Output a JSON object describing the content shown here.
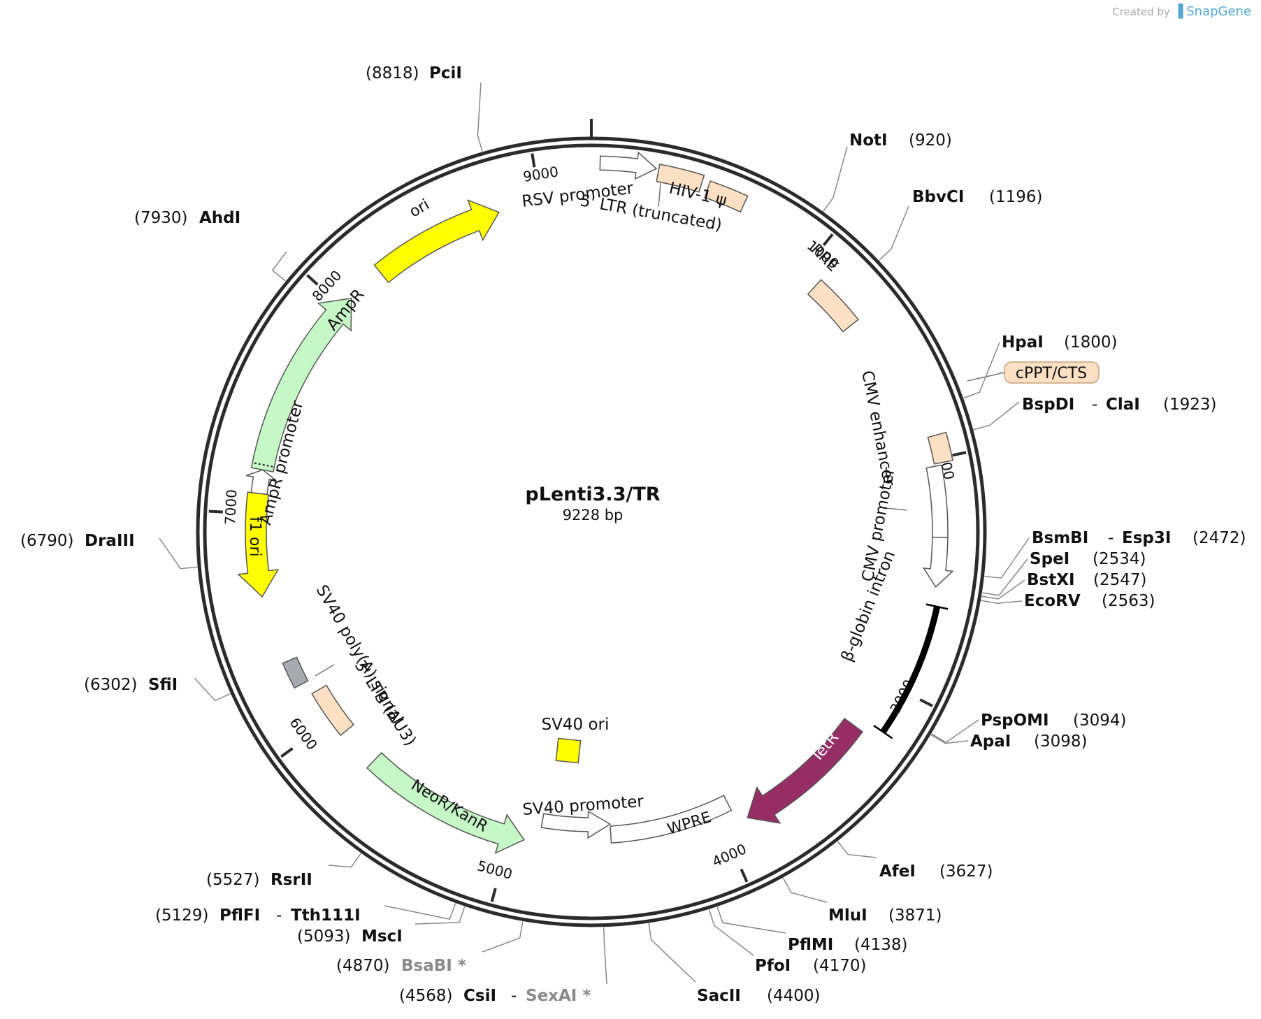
{
  "credit": {
    "prefix": "Created by",
    "brand": "SnapGene"
  },
  "plasmid": {
    "name": "pLenti3.3/TR",
    "size_label": "9228 bp",
    "length_bp": 9228
  },
  "ticks": [
    {
      "bp": 1000,
      "label": "1000"
    },
    {
      "bp": 2000,
      "label": "2000"
    },
    {
      "bp": 3000,
      "label": "3000"
    },
    {
      "bp": 4000,
      "label": "4000"
    },
    {
      "bp": 5000,
      "label": "5000"
    },
    {
      "bp": 6000,
      "label": "6000"
    },
    {
      "bp": 7000,
      "label": "7000"
    },
    {
      "bp": 8000,
      "label": "8000"
    },
    {
      "bp": 9000,
      "label": "9000"
    }
  ],
  "sites": [
    {
      "id": "pcii",
      "name": "PciI",
      "pos": "(8818)",
      "bp": 8818
    },
    {
      "id": "noti",
      "name": "NotI",
      "pos": "(920)",
      "bp": 920
    },
    {
      "id": "bbvci",
      "name": "BbvCI",
      "pos": "(1196)",
      "bp": 1196
    },
    {
      "id": "hpai",
      "name": "HpaI",
      "pos": "(1800)",
      "bp": 1800
    },
    {
      "id": "bspdi",
      "name": "BspDI",
      "name2": "ClaI",
      "pos": "(1923)",
      "bp": 1923
    },
    {
      "id": "bsmbi",
      "name": "BsmBI",
      "name2": "Esp3I",
      "pos": "(2472)",
      "bp": 2472
    },
    {
      "id": "spei",
      "name": "SpeI",
      "pos": "(2534)",
      "bp": 2534
    },
    {
      "id": "bstxi",
      "name": "BstXI",
      "pos": "(2547)",
      "bp": 2547
    },
    {
      "id": "ecorv",
      "name": "EcoRV",
      "pos": "(2563)",
      "bp": 2563
    },
    {
      "id": "pspomi",
      "name": "PspOMI",
      "pos": "(3094)",
      "bp": 3094
    },
    {
      "id": "apai",
      "name": "ApaI",
      "pos": "(3098)",
      "bp": 3098
    },
    {
      "id": "afei",
      "name": "AfeI",
      "pos": "(3627)",
      "bp": 3627
    },
    {
      "id": "mlui",
      "name": "MluI",
      "pos": "(3871)",
      "bp": 3871
    },
    {
      "id": "pflmi",
      "name": "PflMI",
      "pos": "(4138)",
      "bp": 4138
    },
    {
      "id": "pfoi",
      "name": "PfoI",
      "pos": "(4170)",
      "bp": 4170
    },
    {
      "id": "sacii",
      "name": "SacII",
      "pos": "(4400)",
      "bp": 4400
    },
    {
      "id": "csii",
      "name": "CsiI",
      "name2": "SexAI *",
      "pos": "(4568)",
      "bp": 4568
    },
    {
      "id": "bsabi",
      "name": "BsaBI *",
      "pos": "(4870)",
      "bp": 4870
    },
    {
      "id": "msci",
      "name": "MscI",
      "pos": "(5093)",
      "bp": 5093
    },
    {
      "id": "pflfi",
      "name": "PflFI",
      "name2": "Tth111I",
      "pos": "(5129)",
      "bp": 5129
    },
    {
      "id": "rsrii",
      "name": "RsrII",
      "pos": "(5527)",
      "bp": 5527
    },
    {
      "id": "sfii",
      "name": "SfiI",
      "pos": "(6302)",
      "bp": 6302
    },
    {
      "id": "draiii",
      "name": "DraIII",
      "pos": "(6790)",
      "bp": 6790
    },
    {
      "id": "ahdi",
      "name": "AhdI",
      "pos": "(7930)",
      "bp": 7930
    }
  ],
  "features": [
    {
      "id": "rsv-promoter",
      "label": "RSV promoter",
      "start": 35,
      "end": 260,
      "color": "#ffffff",
      "kind": "arrow"
    },
    {
      "id": "ltr5",
      "label": "5' LTR (truncated)",
      "start": 270,
      "end": 450,
      "color": "#fbe0c4",
      "kind": "box"
    },
    {
      "id": "hiv-psi",
      "label": "HIV-1 ψ",
      "start": 480,
      "end": 640,
      "color": "#fbe0c4",
      "kind": "box"
    },
    {
      "id": "rre",
      "label": "RRE",
      "start": 1085,
      "end": 1320,
      "color": "#fbe0c4",
      "kind": "box"
    },
    {
      "id": "cppt",
      "label": "cPPT/CTS",
      "start": 1905,
      "end": 2020,
      "color": "#fbe0c4",
      "kind": "box"
    },
    {
      "id": "cmv-enhancer",
      "label": "CMV enhancer",
      "start": 2030,
      "end": 2330,
      "color": "#ffffff",
      "kind": "box"
    },
    {
      "id": "cmv-promoter",
      "label": "CMV promoter",
      "start": 2330,
      "end": 2540,
      "color": "#ffffff",
      "kind": "arrow"
    },
    {
      "id": "bglobin",
      "label": "β-globin intron",
      "start": 2620,
      "end": 3190,
      "color": "#000000",
      "kind": "line"
    },
    {
      "id": "tetr",
      "label": "TetR",
      "start": 3240,
      "end": 3880,
      "color": "#962d65",
      "kind": "arrow"
    },
    {
      "id": "wpre",
      "label": "WPRE",
      "start": 3930,
      "end": 4520,
      "color": "#ffffff",
      "kind": "box"
    },
    {
      "id": "sv40-promoter",
      "label": "SV40 promoter",
      "start": 4520,
      "end": 4860,
      "color": "#ffffff",
      "kind": "arrow-rev"
    },
    {
      "id": "sv40-ori",
      "label": "SV40 ori",
      "color": "#ffff00",
      "kind": "box-inner"
    },
    {
      "id": "neor",
      "label": "NeoR/KanR",
      "start": 4930,
      "end": 5730,
      "color": "#c6f7c6",
      "kind": "arrow-rev"
    },
    {
      "id": "ltr3",
      "label": "3' LTR (ΔU3)",
      "start": 5920,
      "end": 6150,
      "color": "#fbe0c4",
      "kind": "box"
    },
    {
      "id": "sv40-polya",
      "label": "SV40 poly(A) signal",
      "start": 6210,
      "end": 6330,
      "color": "#a7aaae",
      "kind": "box"
    },
    {
      "id": "f1-ori",
      "label": "f1 ori",
      "start": 6635,
      "end": 7090,
      "color": "#ffff00",
      "kind": "arrow-rev"
    },
    {
      "id": "ampr-promoter",
      "label": "AmpR promoter",
      "start": 7090,
      "end": 7195,
      "color": "#ffffff",
      "kind": "arrow"
    },
    {
      "id": "ampr",
      "label": "AmpR",
      "start": 7195,
      "end": 8055,
      "color": "#c6f7c6",
      "kind": "arrow"
    },
    {
      "id": "ori",
      "label": "ori",
      "start": 8225,
      "end": 8815,
      "color": "#ffff00",
      "kind": "arrow"
    }
  ]
}
